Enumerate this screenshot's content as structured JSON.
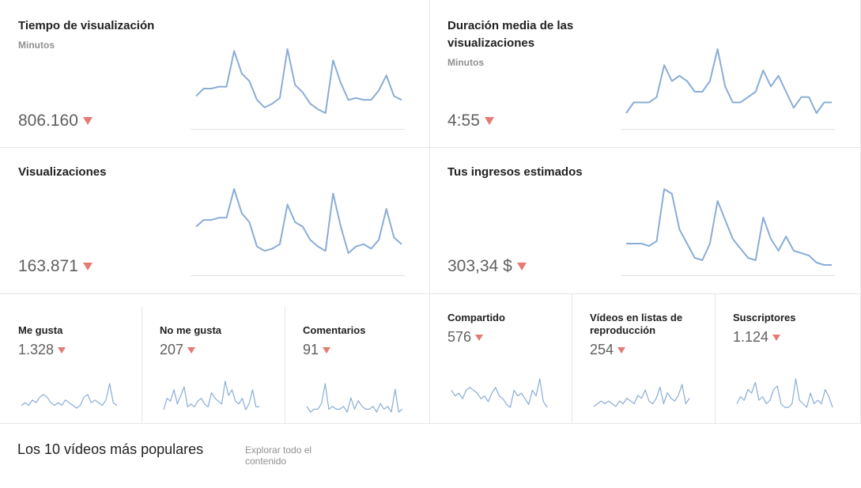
{
  "metrics": {
    "watch_time": {
      "title": "Tiempo de visualización",
      "unit": "Minutos",
      "value": "806.160",
      "trend": "down",
      "series": [
        44,
        48,
        48,
        49,
        49,
        68,
        56,
        52,
        42,
        38,
        40,
        43,
        69,
        50,
        46,
        40,
        37,
        35,
        63,
        51,
        42,
        43,
        42,
        42,
        47,
        55,
        44,
        42
      ]
    },
    "avg_duration": {
      "title": "Duración media de las visualizaciones",
      "unit": "Minutos",
      "value": "4:55",
      "trend": "down",
      "series": [
        41,
        43,
        43,
        43,
        44,
        50,
        47,
        48,
        47,
        45,
        45,
        47,
        53,
        46,
        43,
        43,
        44,
        45,
        49,
        46,
        48,
        45,
        42,
        44,
        44,
        41,
        43,
        43
      ]
    },
    "views": {
      "title": "Visualizaciones",
      "value": "163.871",
      "trend": "down",
      "series": [
        46,
        49,
        49,
        50,
        50,
        63,
        52,
        48,
        37,
        35,
        36,
        38,
        56,
        48,
        46,
        40,
        37,
        35,
        61,
        46,
        34,
        37,
        38,
        36,
        40,
        54,
        41,
        38
      ]
    },
    "revenue": {
      "title": "Tus ingresos estimados",
      "value": "303,34 $",
      "trend": "down",
      "series": [
        40,
        40,
        40,
        39,
        41,
        63,
        61,
        46,
        40,
        34,
        33,
        40,
        58,
        50,
        42,
        38,
        34,
        33,
        51,
        42,
        37,
        43,
        37,
        36,
        35,
        32,
        31,
        31
      ]
    }
  },
  "small_metrics": [
    {
      "title": "Me gusta",
      "value": "1.328",
      "trend": "down",
      "series": [
        3,
        4,
        3,
        5,
        4,
        6,
        7,
        6,
        4,
        3,
        4,
        3,
        5,
        4,
        3,
        2,
        3,
        6,
        7,
        4,
        5,
        4,
        3,
        5,
        11,
        4,
        3
      ]
    },
    {
      "title": "No me gusta",
      "value": "207",
      "trend": "down",
      "series": [
        2,
        6,
        5,
        9,
        4,
        7,
        10,
        3,
        4,
        3,
        5,
        6,
        4,
        3,
        8,
        6,
        5,
        4,
        12,
        7,
        9,
        5,
        4,
        6,
        2,
        4,
        9,
        3,
        3
      ]
    },
    {
      "title": "Comentarios",
      "value": "91",
      "trend": "down",
      "series": [
        4,
        2,
        3,
        3,
        5,
        12,
        3,
        4,
        3,
        3,
        4,
        2,
        7,
        3,
        6,
        4,
        3,
        3,
        4,
        2,
        5,
        3,
        4,
        2,
        10,
        2,
        3
      ]
    },
    {
      "title": "Compartido",
      "value": "576",
      "trend": "down",
      "series": [
        8,
        6,
        7,
        5,
        8,
        9,
        8,
        7,
        5,
        6,
        4,
        7,
        9,
        6,
        5,
        3,
        2,
        8,
        6,
        7,
        5,
        3,
        8,
        6,
        12,
        4,
        2
      ]
    },
    {
      "title": "Vídeos en listas de reproducción",
      "value": "254",
      "trend": "down",
      "series": [
        2,
        3,
        4,
        3,
        4,
        3,
        2,
        4,
        3,
        5,
        4,
        3,
        6,
        5,
        8,
        4,
        3,
        5,
        9,
        3,
        7,
        5,
        4,
        6,
        10,
        3,
        5
      ]
    },
    {
      "title": "Suscriptores",
      "value": "1.124",
      "trend": "down",
      "series": [
        3,
        5,
        4,
        7,
        6,
        9,
        4,
        5,
        3,
        4,
        7,
        8,
        3,
        2,
        2,
        3,
        10,
        4,
        3,
        2,
        6,
        3,
        4,
        3,
        7,
        5,
        2
      ]
    }
  ],
  "top_videos": {
    "title": "Los 10 vídeos más populares",
    "explore_label": "Explorar todo el contenido"
  },
  "colors": {
    "line": "#8aadd6",
    "down_arrow": "#e57b73",
    "divider": "#e6e6e6"
  }
}
